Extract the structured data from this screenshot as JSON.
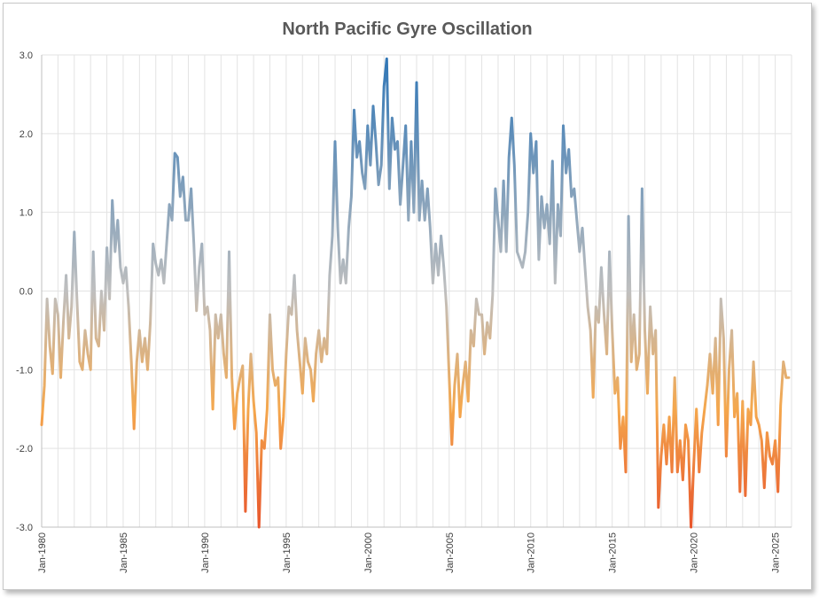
{
  "chart_data": {
    "type": "line",
    "title": "North Pacific Gyre Oscillation",
    "xlabel": "",
    "ylabel": "",
    "ylim": [
      -3.0,
      3.0
    ],
    "xlim": [
      "Jan-1980",
      "Dec-2025"
    ],
    "yticks": [
      "3.0",
      "2.0",
      "1.0",
      "0.0",
      "-1.0",
      "-2.0",
      "-3.0"
    ],
    "xticks": [
      "Jan-1980",
      "Jan-1985",
      "Jan-1990",
      "Jan-1995",
      "Jan-2000",
      "Jan-2005",
      "Jan-2010",
      "Jan-2015",
      "Jan-2020",
      "Jan-2025"
    ],
    "grid": "vertical gridlines each year",
    "color_scale": {
      "high": "#2e75b6",
      "mid": "#bfbfbf",
      "low": "#f4a74d",
      "lowest": "#e8552b"
    },
    "series": [
      {
        "points": [
          [
            "1980-01",
            -1.7
          ],
          [
            "1980-03",
            -1.2
          ],
          [
            "1980-05",
            -0.1
          ],
          [
            "1980-07",
            -0.7
          ],
          [
            "1980-09",
            -1.05
          ],
          [
            "1980-11",
            -0.1
          ],
          [
            "1981-01",
            -0.3
          ],
          [
            "1981-03",
            -1.1
          ],
          [
            "1981-05",
            -0.4
          ],
          [
            "1981-07",
            0.2
          ],
          [
            "1981-09",
            -0.6
          ],
          [
            "1981-11",
            -0.2
          ],
          [
            "1982-01",
            0.75
          ],
          [
            "1982-03",
            -0.1
          ],
          [
            "1982-05",
            -0.9
          ],
          [
            "1982-07",
            -1.0
          ],
          [
            "1982-09",
            -0.5
          ],
          [
            "1982-11",
            -0.8
          ],
          [
            "1983-01",
            -1.0
          ],
          [
            "1983-03",
            0.5
          ],
          [
            "1983-05",
            -0.6
          ],
          [
            "1983-07",
            -0.7
          ],
          [
            "1983-09",
            0.0
          ],
          [
            "1983-11",
            -0.5
          ],
          [
            "1984-01",
            0.55
          ],
          [
            "1984-03",
            -0.1
          ],
          [
            "1984-05",
            1.15
          ],
          [
            "1984-07",
            0.5
          ],
          [
            "1984-09",
            0.9
          ],
          [
            "1984-11",
            0.3
          ],
          [
            "1985-01",
            0.1
          ],
          [
            "1985-03",
            0.3
          ],
          [
            "1985-05",
            -0.2
          ],
          [
            "1985-07",
            -0.9
          ],
          [
            "1985-09",
            -1.75
          ],
          [
            "1985-11",
            -0.9
          ],
          [
            "1986-01",
            -0.5
          ],
          [
            "1986-03",
            -0.9
          ],
          [
            "1986-05",
            -0.6
          ],
          [
            "1986-07",
            -1.0
          ],
          [
            "1986-09",
            -0.4
          ],
          [
            "1986-11",
            0.6
          ],
          [
            "1987-01",
            0.35
          ],
          [
            "1987-03",
            0.2
          ],
          [
            "1987-05",
            0.4
          ],
          [
            "1987-07",
            0.1
          ],
          [
            "1987-09",
            0.6
          ],
          [
            "1987-11",
            1.1
          ],
          [
            "1988-01",
            0.9
          ],
          [
            "1988-03",
            1.75
          ],
          [
            "1988-05",
            1.7
          ],
          [
            "1988-07",
            1.2
          ],
          [
            "1988-09",
            1.45
          ],
          [
            "1988-11",
            0.9
          ],
          [
            "1989-01",
            0.9
          ],
          [
            "1989-03",
            1.3
          ],
          [
            "1989-05",
            0.6
          ],
          [
            "1989-07",
            -0.25
          ],
          [
            "1989-09",
            0.3
          ],
          [
            "1989-11",
            0.6
          ],
          [
            "1990-01",
            -0.3
          ],
          [
            "1990-03",
            -0.2
          ],
          [
            "1990-05",
            -0.5
          ],
          [
            "1990-07",
            -1.5
          ],
          [
            "1990-09",
            -0.3
          ],
          [
            "1990-11",
            -0.6
          ],
          [
            "1991-01",
            -0.3
          ],
          [
            "1991-03",
            -0.8
          ],
          [
            "1991-05",
            -1.1
          ],
          [
            "1991-07",
            0.5
          ],
          [
            "1991-09",
            -1.1
          ],
          [
            "1991-11",
            -1.75
          ],
          [
            "1992-01",
            -1.3
          ],
          [
            "1992-03",
            -1.1
          ],
          [
            "1992-05",
            -0.95
          ],
          [
            "1992-07",
            -2.8
          ],
          [
            "1992-09",
            -1.5
          ],
          [
            "1992-11",
            -0.8
          ],
          [
            "1993-01",
            -1.4
          ],
          [
            "1993-03",
            -1.8
          ],
          [
            "1993-05",
            -3.0
          ],
          [
            "1993-07",
            -1.9
          ],
          [
            "1993-09",
            -2.0
          ],
          [
            "1993-11",
            -1.5
          ],
          [
            "1994-01",
            -0.3
          ],
          [
            "1994-03",
            -1.0
          ],
          [
            "1994-05",
            -1.2
          ],
          [
            "1994-07",
            -1.1
          ],
          [
            "1994-09",
            -2.0
          ],
          [
            "1994-11",
            -1.6
          ],
          [
            "1995-01",
            -0.8
          ],
          [
            "1995-03",
            -0.2
          ],
          [
            "1995-05",
            -0.3
          ],
          [
            "1995-07",
            0.2
          ],
          [
            "1995-09",
            -0.5
          ],
          [
            "1995-11",
            -0.9
          ],
          [
            "1996-01",
            -1.3
          ],
          [
            "1996-03",
            -0.6
          ],
          [
            "1996-05",
            -0.9
          ],
          [
            "1996-07",
            -1.0
          ],
          [
            "1996-09",
            -1.4
          ],
          [
            "1996-11",
            -0.8
          ],
          [
            "1997-01",
            -0.5
          ],
          [
            "1997-03",
            -0.9
          ],
          [
            "1997-05",
            -0.6
          ],
          [
            "1997-07",
            -0.8
          ],
          [
            "1997-09",
            0.2
          ],
          [
            "1997-11",
            0.7
          ],
          [
            "1998-01",
            1.9
          ],
          [
            "1998-03",
            0.8
          ],
          [
            "1998-05",
            0.1
          ],
          [
            "1998-07",
            0.4
          ],
          [
            "1998-09",
            0.1
          ],
          [
            "1998-11",
            0.8
          ],
          [
            "1999-01",
            1.2
          ],
          [
            "1999-03",
            2.3
          ],
          [
            "1999-05",
            1.7
          ],
          [
            "1999-07",
            1.9
          ],
          [
            "1999-09",
            1.5
          ],
          [
            "1999-11",
            1.3
          ],
          [
            "2000-01",
            2.1
          ],
          [
            "2000-03",
            1.6
          ],
          [
            "2000-05",
            2.35
          ],
          [
            "2000-07",
            1.9
          ],
          [
            "2000-09",
            1.35
          ],
          [
            "2000-11",
            1.6
          ],
          [
            "2001-01",
            2.6
          ],
          [
            "2001-03",
            2.95
          ],
          [
            "2001-05",
            1.3
          ],
          [
            "2001-07",
            2.2
          ],
          [
            "2001-09",
            1.8
          ],
          [
            "2001-11",
            1.9
          ],
          [
            "2002-01",
            1.1
          ],
          [
            "2002-03",
            1.6
          ],
          [
            "2002-05",
            2.1
          ],
          [
            "2002-07",
            0.9
          ],
          [
            "2002-09",
            1.9
          ],
          [
            "2002-11",
            1.0
          ],
          [
            "2003-01",
            2.65
          ],
          [
            "2003-03",
            0.9
          ],
          [
            "2003-05",
            1.4
          ],
          [
            "2003-07",
            0.9
          ],
          [
            "2003-09",
            1.3
          ],
          [
            "2003-11",
            0.8
          ],
          [
            "2004-01",
            0.1
          ],
          [
            "2004-03",
            0.6
          ],
          [
            "2004-05",
            0.2
          ],
          [
            "2004-07",
            0.7
          ],
          [
            "2004-09",
            0.3
          ],
          [
            "2004-11",
            -0.2
          ],
          [
            "2005-01",
            -1.1
          ],
          [
            "2005-03",
            -1.95
          ],
          [
            "2005-05",
            -1.2
          ],
          [
            "2005-07",
            -0.8
          ],
          [
            "2005-09",
            -1.6
          ],
          [
            "2005-11",
            -1.2
          ],
          [
            "2006-01",
            -0.9
          ],
          [
            "2006-03",
            -1.4
          ],
          [
            "2006-05",
            -0.5
          ],
          [
            "2006-07",
            -0.7
          ],
          [
            "2006-09",
            -0.1
          ],
          [
            "2006-11",
            -0.3
          ],
          [
            "2007-01",
            -0.3
          ],
          [
            "2007-03",
            -0.8
          ],
          [
            "2007-05",
            -0.4
          ],
          [
            "2007-07",
            -0.6
          ],
          [
            "2007-09",
            -0.05
          ],
          [
            "2007-11",
            1.3
          ],
          [
            "2008-01",
            0.9
          ],
          [
            "2008-03",
            0.5
          ],
          [
            "2008-05",
            1.4
          ],
          [
            "2008-07",
            0.5
          ],
          [
            "2008-09",
            1.7
          ],
          [
            "2008-11",
            2.2
          ],
          [
            "2009-01",
            1.6
          ],
          [
            "2009-03",
            0.5
          ],
          [
            "2009-05",
            0.4
          ],
          [
            "2009-07",
            0.3
          ],
          [
            "2009-09",
            0.5
          ],
          [
            "2009-11",
            1.0
          ],
          [
            "2010-01",
            2.0
          ],
          [
            "2010-03",
            1.5
          ],
          [
            "2010-05",
            1.9
          ],
          [
            "2010-07",
            0.4
          ],
          [
            "2010-09",
            1.2
          ],
          [
            "2010-11",
            0.8
          ],
          [
            "2011-01",
            1.1
          ],
          [
            "2011-03",
            0.6
          ],
          [
            "2011-05",
            1.65
          ],
          [
            "2011-07",
            0.1
          ],
          [
            "2011-09",
            1.1
          ],
          [
            "2011-11",
            0.7
          ],
          [
            "2012-01",
            2.1
          ],
          [
            "2012-03",
            1.5
          ],
          [
            "2012-05",
            1.8
          ],
          [
            "2012-07",
            1.2
          ],
          [
            "2012-09",
            1.3
          ],
          [
            "2012-11",
            0.9
          ],
          [
            "2013-01",
            0.5
          ],
          [
            "2013-03",
            0.8
          ],
          [
            "2013-05",
            0.3
          ],
          [
            "2013-07",
            -0.2
          ],
          [
            "2013-09",
            -0.5
          ],
          [
            "2013-11",
            -1.35
          ],
          [
            "2014-01",
            -0.2
          ],
          [
            "2014-03",
            -0.4
          ],
          [
            "2014-05",
            0.3
          ],
          [
            "2014-07",
            -0.3
          ],
          [
            "2014-09",
            -0.8
          ],
          [
            "2014-11",
            0.5
          ],
          [
            "2015-01",
            -0.5
          ],
          [
            "2015-03",
            -1.3
          ],
          [
            "2015-05",
            -1.1
          ],
          [
            "2015-07",
            -2.0
          ],
          [
            "2015-09",
            -1.6
          ],
          [
            "2015-11",
            -2.3
          ],
          [
            "2016-01",
            0.95
          ],
          [
            "2016-03",
            -0.9
          ],
          [
            "2016-05",
            -0.3
          ],
          [
            "2016-07",
            -1.0
          ],
          [
            "2016-09",
            -0.8
          ],
          [
            "2016-11",
            1.3
          ],
          [
            "2017-01",
            -0.5
          ],
          [
            "2017-03",
            -1.3
          ],
          [
            "2017-05",
            -0.2
          ],
          [
            "2017-07",
            -0.8
          ],
          [
            "2017-09",
            -0.5
          ],
          [
            "2017-11",
            -2.75
          ],
          [
            "2018-01",
            -2.1
          ],
          [
            "2018-03",
            -1.7
          ],
          [
            "2018-05",
            -2.2
          ],
          [
            "2018-07",
            -1.6
          ],
          [
            "2018-09",
            -2.3
          ],
          [
            "2018-11",
            -1.1
          ],
          [
            "2019-01",
            -2.3
          ],
          [
            "2019-03",
            -1.9
          ],
          [
            "2019-05",
            -2.4
          ],
          [
            "2019-07",
            -1.7
          ],
          [
            "2019-09",
            -1.9
          ],
          [
            "2019-11",
            -3.0
          ],
          [
            "2020-01",
            -2.2
          ],
          [
            "2020-03",
            -1.5
          ],
          [
            "2020-05",
            -2.3
          ],
          [
            "2020-07",
            -1.8
          ],
          [
            "2020-09",
            -1.5
          ],
          [
            "2020-11",
            -1.2
          ],
          [
            "2021-01",
            -0.8
          ],
          [
            "2021-03",
            -1.3
          ],
          [
            "2021-05",
            -0.6
          ],
          [
            "2021-07",
            -1.7
          ],
          [
            "2021-09",
            -0.1
          ],
          [
            "2021-11",
            -0.6
          ],
          [
            "2022-01",
            -2.1
          ],
          [
            "2022-03",
            -1.0
          ],
          [
            "2022-05",
            -0.5
          ],
          [
            "2022-07",
            -1.6
          ],
          [
            "2022-09",
            -1.3
          ],
          [
            "2022-11",
            -2.55
          ],
          [
            "2023-01",
            -1.4
          ],
          [
            "2023-03",
            -2.6
          ],
          [
            "2023-05",
            -1.5
          ],
          [
            "2023-07",
            -1.7
          ],
          [
            "2023-09",
            -0.9
          ],
          [
            "2023-11",
            -1.6
          ],
          [
            "2024-01",
            -1.7
          ],
          [
            "2024-03",
            -1.9
          ],
          [
            "2024-05",
            -2.5
          ],
          [
            "2024-07",
            -1.8
          ],
          [
            "2024-09",
            -2.1
          ],
          [
            "2024-11",
            -2.2
          ],
          [
            "2025-01",
            -1.9
          ],
          [
            "2025-03",
            -2.55
          ],
          [
            "2025-05",
            -1.45
          ],
          [
            "2025-07",
            -0.9
          ],
          [
            "2025-09",
            -1.1
          ],
          [
            "2025-11",
            -1.1
          ]
        ]
      }
    ]
  }
}
